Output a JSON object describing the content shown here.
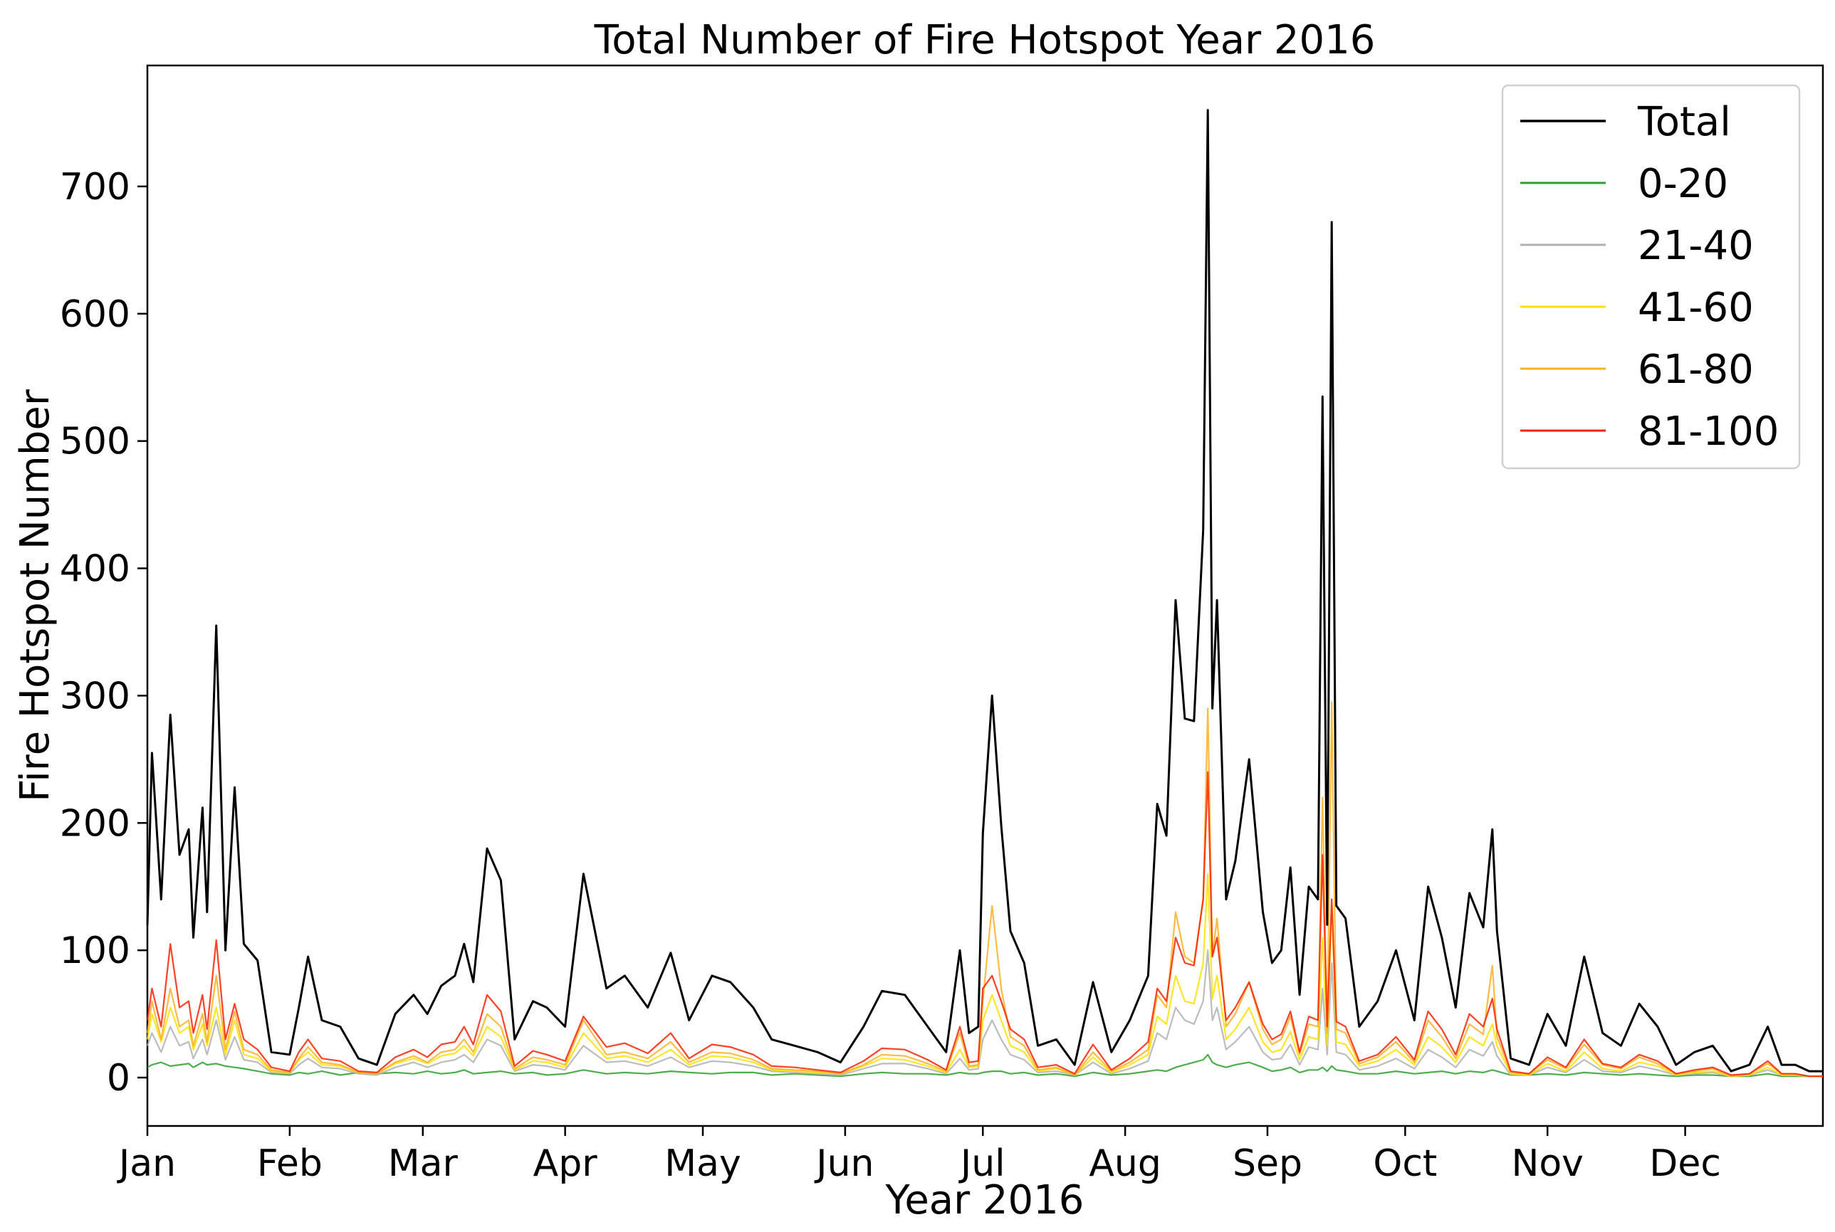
{
  "chart_data": {
    "type": "line",
    "title": "Total Number of Fire Hotspot Year 2016",
    "xlabel": "Year 2016",
    "ylabel": "Fire Hotspot Number",
    "ylim": [
      -38,
      795
    ],
    "xlim": [
      "2016-01-01",
      "2016-12-31"
    ],
    "yticks": [
      0,
      100,
      200,
      300,
      400,
      500,
      600,
      700
    ],
    "xticks": [
      {
        "label": "Jan",
        "date": "2016-01-01"
      },
      {
        "label": "Feb",
        "date": "2016-02-01"
      },
      {
        "label": "Mar",
        "date": "2016-03-01"
      },
      {
        "label": "Apr",
        "date": "2016-04-01"
      },
      {
        "label": "May",
        "date": "2016-05-01"
      },
      {
        "label": "Jun",
        "date": "2016-06-01"
      },
      {
        "label": "Jul",
        "date": "2016-07-01"
      },
      {
        "label": "Aug",
        "date": "2016-08-01"
      },
      {
        "label": "Sep",
        "date": "2016-09-01"
      },
      {
        "label": "Oct",
        "date": "2016-10-01"
      },
      {
        "label": "Nov",
        "date": "2016-11-01"
      },
      {
        "label": "Dec",
        "date": "2016-12-01"
      }
    ],
    "grid": false,
    "legend_position": "top-right",
    "x": [
      "2016-01-01",
      "2016-01-02",
      "2016-01-04",
      "2016-01-06",
      "2016-01-08",
      "2016-01-10",
      "2016-01-11",
      "2016-01-13",
      "2016-01-14",
      "2016-01-16",
      "2016-01-18",
      "2016-01-20",
      "2016-01-22",
      "2016-01-25",
      "2016-01-28",
      "2016-02-01",
      "2016-02-03",
      "2016-02-05",
      "2016-02-08",
      "2016-02-12",
      "2016-02-16",
      "2016-02-20",
      "2016-02-24",
      "2016-02-28",
      "2016-03-02",
      "2016-03-05",
      "2016-03-08",
      "2016-03-10",
      "2016-03-12",
      "2016-03-15",
      "2016-03-18",
      "2016-03-21",
      "2016-03-25",
      "2016-03-28",
      "2016-04-01",
      "2016-04-05",
      "2016-04-10",
      "2016-04-14",
      "2016-04-19",
      "2016-04-24",
      "2016-04-28",
      "2016-05-03",
      "2016-05-07",
      "2016-05-12",
      "2016-05-16",
      "2016-05-21",
      "2016-05-26",
      "2016-05-31",
      "2016-06-05",
      "2016-06-09",
      "2016-06-14",
      "2016-06-19",
      "2016-06-23",
      "2016-06-26",
      "2016-06-28",
      "2016-06-30",
      "2016-07-01",
      "2016-07-03",
      "2016-07-05",
      "2016-07-07",
      "2016-07-10",
      "2016-07-13",
      "2016-07-17",
      "2016-07-21",
      "2016-07-25",
      "2016-07-29",
      "2016-08-02",
      "2016-08-06",
      "2016-08-08",
      "2016-08-10",
      "2016-08-12",
      "2016-08-14",
      "2016-08-16",
      "2016-08-18",
      "2016-08-19",
      "2016-08-20",
      "2016-08-21",
      "2016-08-23",
      "2016-08-25",
      "2016-08-28",
      "2016-08-31",
      "2016-09-02",
      "2016-09-04",
      "2016-09-06",
      "2016-09-08",
      "2016-09-10",
      "2016-09-12",
      "2016-09-13",
      "2016-09-14",
      "2016-09-15",
      "2016-09-16",
      "2016-09-18",
      "2016-09-21",
      "2016-09-25",
      "2016-09-29",
      "2016-10-03",
      "2016-10-06",
      "2016-10-09",
      "2016-10-12",
      "2016-10-15",
      "2016-10-18",
      "2016-10-20",
      "2016-10-21",
      "2016-10-24",
      "2016-10-28",
      "2016-11-01",
      "2016-11-05",
      "2016-11-09",
      "2016-11-13",
      "2016-11-17",
      "2016-11-21",
      "2016-11-25",
      "2016-11-29",
      "2016-12-03",
      "2016-12-07",
      "2016-12-11",
      "2016-12-15",
      "2016-12-19",
      "2016-12-22",
      "2016-12-25",
      "2016-12-28",
      "2016-12-31"
    ],
    "series": [
      {
        "name": "Total",
        "color": "#000000",
        "values": [
          120,
          255,
          140,
          285,
          175,
          195,
          110,
          212,
          130,
          355,
          100,
          228,
          105,
          92,
          20,
          18,
          55,
          95,
          45,
          40,
          15,
          10,
          50,
          65,
          50,
          72,
          80,
          105,
          75,
          180,
          155,
          30,
          60,
          55,
          40,
          160,
          70,
          80,
          55,
          98,
          45,
          80,
          75,
          55,
          30,
          25,
          20,
          12,
          40,
          68,
          65,
          40,
          20,
          100,
          35,
          40,
          192,
          300,
          198,
          115,
          90,
          25,
          30,
          10,
          75,
          20,
          45,
          80,
          215,
          190,
          375,
          282,
          280,
          430,
          760,
          290,
          375,
          140,
          170,
          250,
          130,
          90,
          100,
          165,
          65,
          150,
          140,
          535,
          120,
          672,
          135,
          125,
          40,
          60,
          100,
          45,
          150,
          110,
          55,
          145,
          118,
          195,
          115,
          15,
          10,
          50,
          25,
          95,
          35,
          25,
          58,
          40,
          10,
          20,
          25,
          5,
          10,
          40,
          10,
          10,
          5,
          5
        ]
      },
      {
        "name": "0-20",
        "color": "#2ca02c",
        "values": [
          8,
          10,
          12,
          9,
          10,
          11,
          8,
          12,
          10,
          11,
          9,
          8,
          7,
          5,
          3,
          2,
          4,
          3,
          5,
          2,
          4,
          3,
          4,
          3,
          5,
          3,
          4,
          6,
          3,
          4,
          5,
          3,
          4,
          2,
          3,
          6,
          3,
          4,
          3,
          5,
          4,
          3,
          4,
          4,
          2,
          3,
          2,
          1,
          3,
          4,
          3,
          3,
          2,
          4,
          3,
          3,
          4,
          5,
          5,
          3,
          4,
          2,
          3,
          1,
          4,
          2,
          3,
          5,
          6,
          5,
          8,
          10,
          12,
          14,
          18,
          12,
          10,
          8,
          10,
          12,
          8,
          5,
          6,
          8,
          4,
          6,
          6,
          8,
          5,
          9,
          6,
          5,
          3,
          3,
          5,
          3,
          4,
          5,
          3,
          5,
          4,
          6,
          5,
          2,
          2,
          3,
          2,
          4,
          3,
          2,
          3,
          2,
          1,
          2,
          2,
          1,
          1,
          3,
          1,
          1,
          1,
          1
        ]
      },
      {
        "name": "21-40",
        "color": "#b0b0b0",
        "values": [
          25,
          35,
          20,
          40,
          25,
          28,
          15,
          30,
          18,
          45,
          14,
          32,
          14,
          12,
          4,
          3,
          10,
          15,
          8,
          7,
          3,
          2,
          8,
          12,
          8,
          12,
          14,
          18,
          12,
          30,
          25,
          5,
          10,
          9,
          6,
          25,
          12,
          13,
          9,
          16,
          8,
          13,
          12,
          9,
          5,
          4,
          3,
          2,
          7,
          11,
          11,
          7,
          3,
          15,
          6,
          7,
          30,
          45,
          30,
          18,
          14,
          4,
          5,
          2,
          12,
          3,
          7,
          13,
          35,
          30,
          55,
          45,
          42,
          60,
          100,
          45,
          55,
          22,
          28,
          40,
          20,
          14,
          15,
          26,
          10,
          24,
          22,
          70,
          18,
          90,
          20,
          18,
          6,
          9,
          15,
          7,
          22,
          16,
          8,
          22,
          17,
          28,
          17,
          2,
          2,
          8,
          4,
          14,
          5,
          4,
          9,
          6,
          2,
          3,
          4,
          1,
          2,
          6,
          2,
          2,
          1,
          1
        ]
      },
      {
        "name": "41-60",
        "color": "#ffe000",
        "values": [
          30,
          50,
          28,
          55,
          35,
          40,
          22,
          42,
          25,
          55,
          18,
          45,
          18,
          15,
          5,
          4,
          14,
          20,
          10,
          9,
          4,
          3,
          11,
          15,
          11,
          17,
          19,
          25,
          17,
          40,
          32,
          6,
          13,
          12,
          8,
          35,
          15,
          17,
          12,
          22,
          10,
          17,
          16,
          12,
          6,
          5,
          4,
          3,
          9,
          15,
          14,
          9,
          4,
          22,
          8,
          9,
          45,
          65,
          45,
          25,
          20,
          5,
          7,
          2,
          16,
          4,
          10,
          18,
          48,
          42,
          80,
          60,
          58,
          90,
          160,
          62,
          80,
          30,
          38,
          55,
          28,
          20,
          22,
          36,
          14,
          32,
          30,
          110,
          25,
          140,
          28,
          26,
          9,
          13,
          22,
          10,
          32,
          24,
          12,
          32,
          25,
          42,
          25,
          3,
          2,
          11,
          5,
          20,
          7,
          5,
          12,
          9,
          2,
          4,
          5,
          1,
          2,
          8,
          2,
          2,
          1,
          1
        ]
      },
      {
        "name": "61-80",
        "color": "#ffb020",
        "values": [
          35,
          60,
          30,
          70,
          40,
          45,
          25,
          50,
          28,
          80,
          22,
          52,
          22,
          18,
          6,
          4,
          15,
          24,
          12,
          10,
          4,
          3,
          12,
          17,
          12,
          20,
          22,
          30,
          20,
          50,
          40,
          7,
          16,
          14,
          10,
          45,
          18,
          20,
          15,
          28,
          12,
          20,
          19,
          14,
          7,
          6,
          5,
          3,
          10,
          18,
          17,
          11,
          5,
          35,
          9,
          10,
          60,
          135,
          70,
          32,
          25,
          6,
          8,
          2,
          20,
          5,
          12,
          22,
          65,
          55,
          130,
          95,
          90,
          140,
          290,
          95,
          125,
          40,
          50,
          75,
          38,
          26,
          30,
          48,
          18,
          42,
          40,
          220,
          35,
          295,
          38,
          35,
          11,
          16,
          28,
          12,
          45,
          32,
          15,
          42,
          34,
          88,
          32,
          4,
          3,
          14,
          7,
          26,
          10,
          7,
          16,
          11,
          3,
          5,
          7,
          1,
          3,
          11,
          3,
          3,
          1,
          1
        ]
      },
      {
        "name": "81-100",
        "color": "#ff2000",
        "values": [
          45,
          70,
          40,
          105,
          55,
          60,
          35,
          65,
          38,
          108,
          30,
          58,
          30,
          22,
          8,
          5,
          20,
          30,
          15,
          13,
          5,
          4,
          16,
          22,
          16,
          26,
          28,
          40,
          26,
          65,
          52,
          9,
          21,
          18,
          13,
          48,
          24,
          27,
          19,
          35,
          15,
          26,
          24,
          18,
          9,
          8,
          6,
          4,
          13,
          23,
          22,
          14,
          6,
          40,
          12,
          13,
          70,
          80,
          60,
          38,
          30,
          8,
          10,
          3,
          26,
          6,
          15,
          28,
          70,
          60,
          110,
          90,
          88,
          140,
          240,
          95,
          110,
          45,
          55,
          75,
          42,
          30,
          34,
          52,
          20,
          48,
          45,
          175,
          40,
          140,
          44,
          40,
          13,
          18,
          32,
          14,
          52,
          38,
          18,
          50,
          40,
          62,
          38,
          5,
          3,
          16,
          8,
          30,
          11,
          8,
          18,
          13,
          3,
          6,
          8,
          2,
          3,
          13,
          3,
          3,
          1,
          1
        ]
      }
    ]
  }
}
